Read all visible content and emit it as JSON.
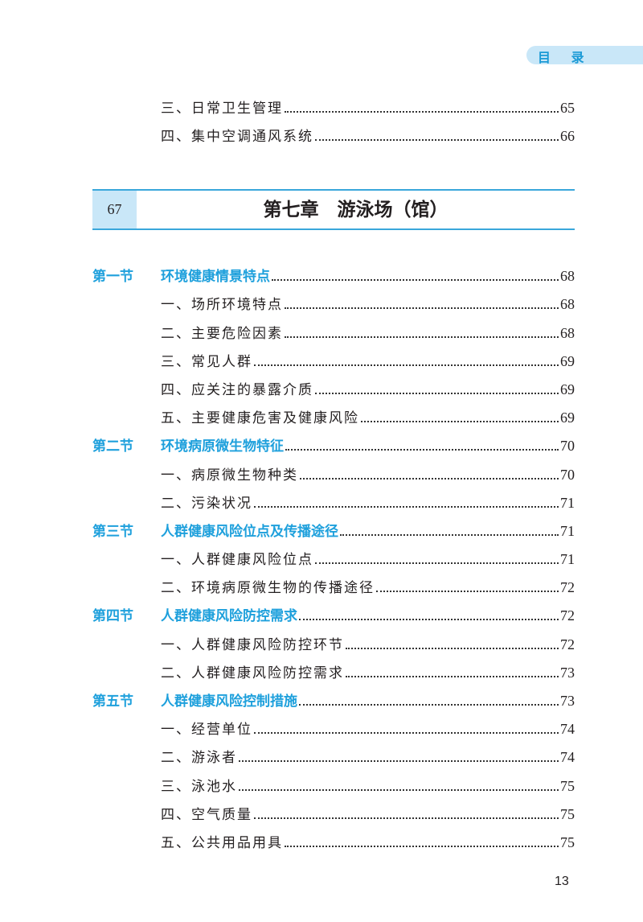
{
  "header_tab": "目 录",
  "prev_items": [
    {
      "label": "三、日常卫生管理",
      "page": "65"
    },
    {
      "label": "四、集中空调通风系统",
      "page": "66"
    }
  ],
  "chapter": {
    "page": "67",
    "title": "第七章　游泳场（馆）"
  },
  "entries": [
    {
      "type": "sec",
      "num": "第一节",
      "label": "环境健康情景特点",
      "page": "68"
    },
    {
      "type": "sub",
      "label": "一、场所环境特点",
      "page": "68"
    },
    {
      "type": "sub",
      "label": "二、主要危险因素",
      "page": "68"
    },
    {
      "type": "sub",
      "label": "三、常见人群",
      "page": "69"
    },
    {
      "type": "sub",
      "label": "四、应关注的暴露介质",
      "page": "69"
    },
    {
      "type": "sub",
      "label": "五、主要健康危害及健康风险",
      "page": "69"
    },
    {
      "type": "sec",
      "num": "第二节",
      "label": "环境病原微生物特征",
      "page": "70"
    },
    {
      "type": "sub",
      "label": "一、病原微生物种类",
      "page": "70"
    },
    {
      "type": "sub",
      "label": "二、污染状况",
      "page": "71"
    },
    {
      "type": "sec",
      "num": "第三节",
      "label": "人群健康风险位点及传播途径",
      "page": "71"
    },
    {
      "type": "sub",
      "label": "一、人群健康风险位点",
      "page": "71"
    },
    {
      "type": "sub",
      "label": "二、环境病原微生物的传播途径",
      "page": "72"
    },
    {
      "type": "sec",
      "num": "第四节",
      "label": "人群健康风险防控需求",
      "page": "72"
    },
    {
      "type": "sub",
      "label": "一、人群健康风险防控环节",
      "page": "72"
    },
    {
      "type": "sub",
      "label": "二、人群健康风险防控需求",
      "page": "73"
    },
    {
      "type": "sec",
      "num": "第五节",
      "label": "人群健康风险控制措施",
      "page": "73"
    },
    {
      "type": "sub",
      "label": "一、经营单位",
      "page": "74"
    },
    {
      "type": "sub",
      "label": "二、游泳者",
      "page": "74"
    },
    {
      "type": "sub",
      "label": "三、泳池水",
      "page": "75"
    },
    {
      "type": "sub",
      "label": "四、空气质量",
      "page": "75"
    },
    {
      "type": "sub",
      "label": "五、公共用品用具",
      "page": "75"
    }
  ],
  "folio": "13",
  "colors": {
    "accent": "#1ea0dc",
    "tab_bg": "#c9e7f8"
  }
}
